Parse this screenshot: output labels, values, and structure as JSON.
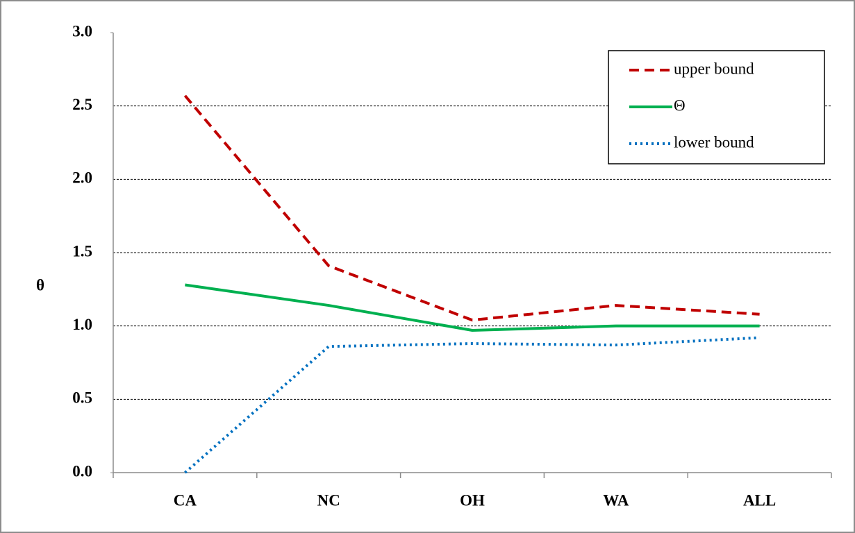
{
  "chart_data": {
    "type": "line",
    "y_label": "θ",
    "categories": [
      "CA",
      "NC",
      "OH",
      "WA",
      "ALL"
    ],
    "series": [
      {
        "name": "upper bound",
        "color": "#c00000",
        "line_style": "dashed",
        "values": [
          2.57,
          1.41,
          1.04,
          1.14,
          1.08
        ]
      },
      {
        "name": "Θ",
        "color": "#00b050",
        "line_style": "solid",
        "values": [
          1.28,
          1.14,
          0.97,
          1.0,
          1.0
        ]
      },
      {
        "name": "lower bound",
        "color": "#0070c0",
        "line_style": "dotted",
        "values": [
          0.0,
          0.86,
          0.88,
          0.87,
          0.92
        ]
      }
    ],
    "ylim": [
      0,
      3
    ],
    "yticks": [
      {
        "value": 0,
        "label": "0.0"
      },
      0.5,
      {
        "value": 1,
        "label": "1.0"
      },
      1.5,
      {
        "value": 2,
        "label": "2.0"
      },
      2.5,
      {
        "value": 3,
        "label": "3.0"
      }
    ],
    "grid": true,
    "legend": "upper-right"
  }
}
